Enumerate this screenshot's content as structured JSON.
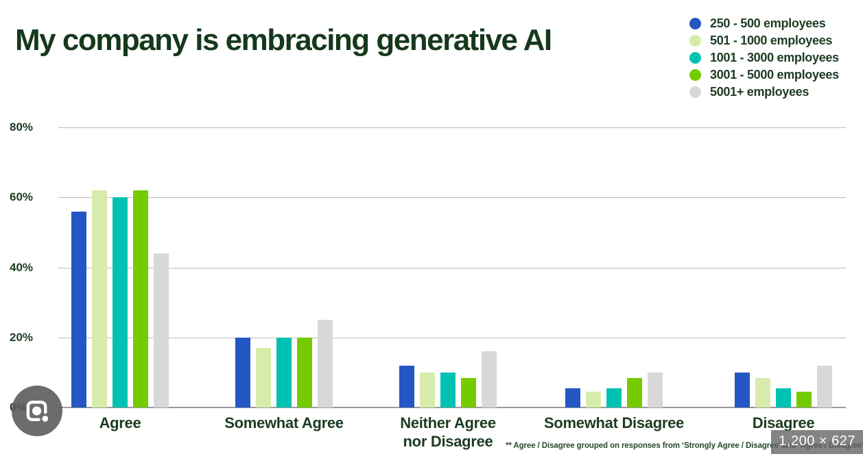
{
  "title": "My company is embracing generative AI",
  "legend": {
    "items": [
      {
        "label": "250 - 500 employees",
        "color": "#2456c4"
      },
      {
        "label": "501 - 1000 employees",
        "color": "#d7ecaa"
      },
      {
        "label": "1001 - 3000 employees",
        "color": "#00c2b2"
      },
      {
        "label": "3001 - 5000 employees",
        "color": "#76ca00"
      },
      {
        "label": "5001+ employees",
        "color": "#d8d8d8"
      }
    ]
  },
  "chart_data": {
    "type": "bar",
    "title": "My company is embracing generative AI",
    "categories": [
      "Agree",
      "Somewhat Agree",
      "Neither Agree nor Disagree",
      "Somewhat Disagree",
      "Disagree"
    ],
    "series": [
      {
        "name": "250 - 500 employees",
        "color": "#2456c4",
        "values": [
          56,
          20,
          12,
          5.5,
          10
        ]
      },
      {
        "name": "501 - 1000 employees",
        "color": "#d7ecaa",
        "values": [
          62,
          17,
          10,
          4.5,
          8.5
        ]
      },
      {
        "name": "1001 - 3000 employees",
        "color": "#00c2b2",
        "values": [
          60,
          20,
          10,
          5.5,
          5.5
        ]
      },
      {
        "name": "3001 - 5000 employees",
        "color": "#76ca00",
        "values": [
          62,
          20,
          8.5,
          8.5,
          4.5
        ]
      },
      {
        "name": "5001+ employees",
        "color": "#d8d8d8",
        "values": [
          44,
          25,
          16,
          10,
          12
        ]
      }
    ],
    "xlabel": "",
    "ylabel": "",
    "ylim": [
      0,
      80
    ],
    "yticks": [
      {
        "label": "80%",
        "value": 80
      },
      {
        "label": "60%",
        "value": 60
      },
      {
        "label": "40%",
        "value": 40
      },
      {
        "label": "20%",
        "value": 20
      },
      {
        "label": "0%",
        "value": 0
      }
    ],
    "grid": true,
    "legend_position": "top-right"
  },
  "footnote": "** Agree / Disagree grouped on responses from ‘Strongly Agree / Disagree’ and ‘Agree / Disagree’",
  "overlay": {
    "size_badge": "1,200 × 627",
    "lens_icon": "google-lens-camera-icon"
  },
  "colors": {
    "text_dark_green": "#1d3b22",
    "gridline": "#bcbcbc",
    "baseline": "#9a9a9a",
    "badge_bg": "rgba(97,97,97,0.78)"
  }
}
